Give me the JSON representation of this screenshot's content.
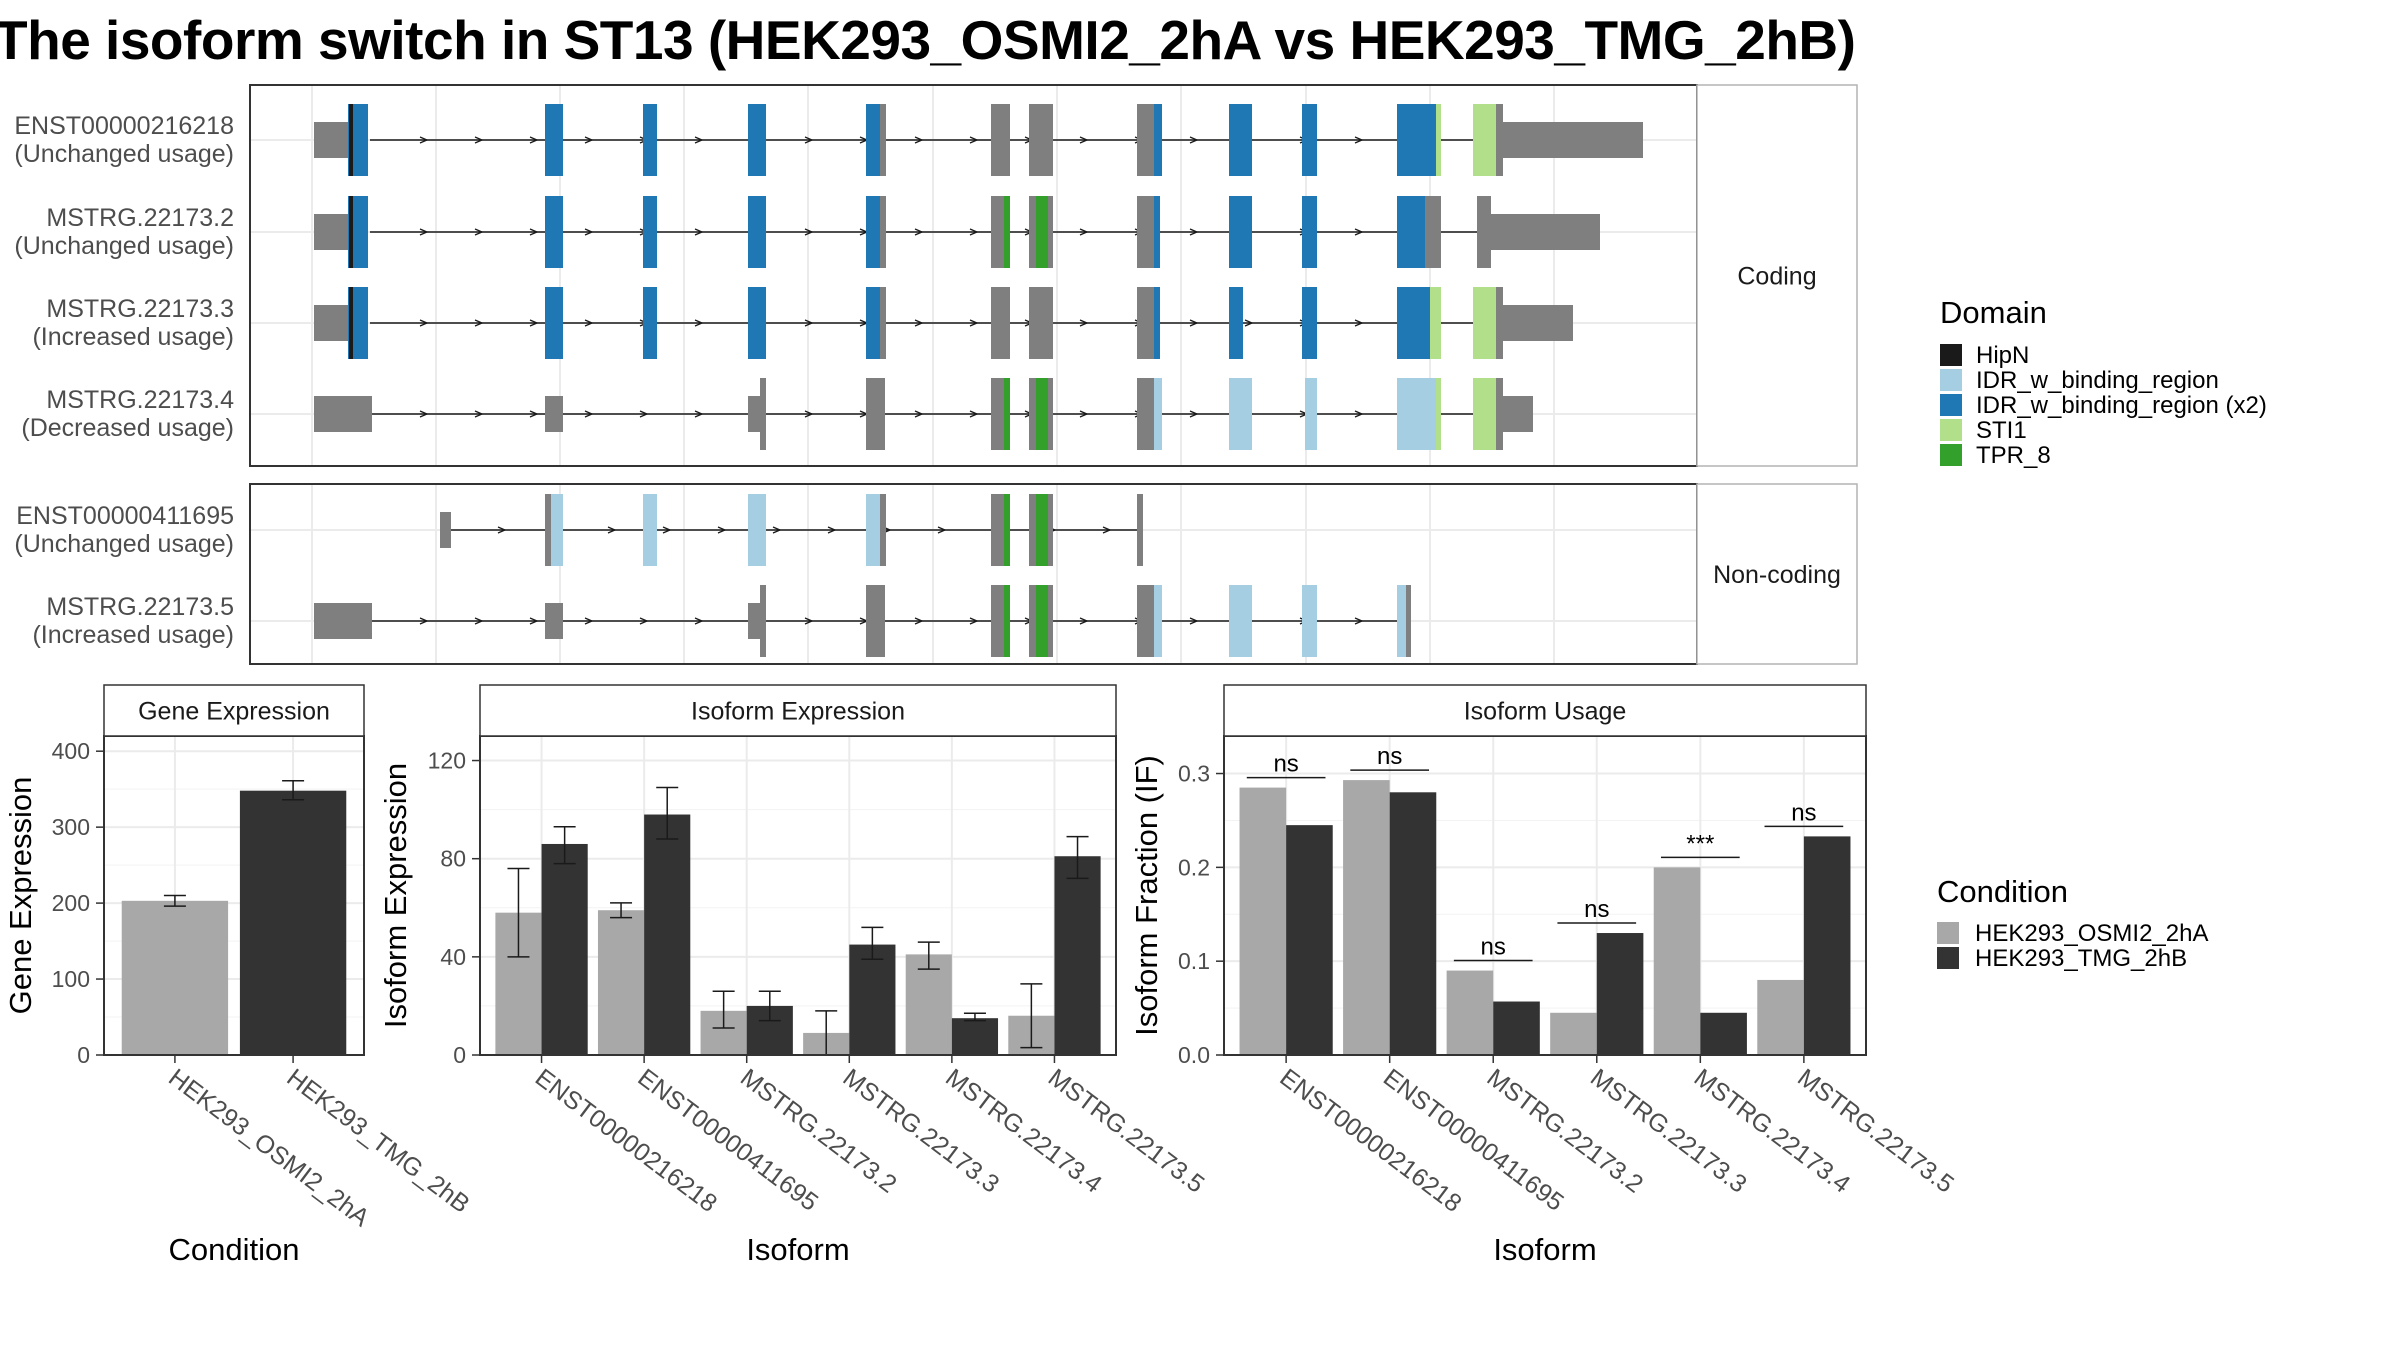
{
  "title": "The isoform switch in ST13 (HEK293_OSMI2_2hA vs HEK293_TMG_2hB)",
  "colors": {
    "HipN": "#1a1a1a",
    "IDR_w_binding_region": "#a6cee3",
    "IDR_w_binding_region (x2)": "#1f78b4",
    "STI1": "#b2df8a",
    "TPR_8": "#33a02c",
    "none": "#7f7f7f",
    "cond_a": "#a8a8a8",
    "cond_b": "#333333"
  },
  "structure": {
    "groups": [
      {
        "label": "Coding",
        "isoforms": [
          {
            "name": "ENST00000216218",
            "usage": "(Unchanged usage)"
          },
          {
            "name": "MSTRG.22173.2",
            "usage": "(Unchanged usage)"
          },
          {
            "name": "MSTRG.22173.3",
            "usage": "(Increased usage)"
          },
          {
            "name": "MSTRG.22173.4",
            "usage": "(Decreased usage)"
          }
        ]
      },
      {
        "label": "Non-coding",
        "isoforms": [
          {
            "name": "ENST00000411695",
            "usage": "(Unchanged usage)"
          },
          {
            "name": "MSTRG.22173.5",
            "usage": "(Increased usage)"
          }
        ]
      }
    ],
    "legend_title": "Domain",
    "legend": [
      "HipN",
      "IDR_w_binding_region",
      "IDR_w_binding_region (x2)",
      "STI1",
      "TPR_8"
    ]
  },
  "chart_data": [
    {
      "type": "bar",
      "title": "Gene Expression",
      "xlabel": "Condition",
      "ylabel": "Gene Expression",
      "categories": [
        "HEK293_OSMI2_2hA",
        "HEK293_TMG_2hB"
      ],
      "values": [
        203,
        348
      ],
      "errors": [
        [
          196,
          210
        ],
        [
          336,
          361
        ]
      ],
      "ylim": [
        0,
        420
      ],
      "yticks": [
        "0",
        "100",
        "200",
        "300",
        "400"
      ]
    },
    {
      "type": "bar",
      "title": "Isoform Expression",
      "xlabel": "Isoform",
      "ylabel": "Isoform Expression",
      "categories": [
        "ENST00000216218",
        "ENST00000411695",
        "MSTRG.22173.2",
        "MSTRG.22173.3",
        "MSTRG.22173.4",
        "MSTRG.22173.5"
      ],
      "series": [
        {
          "name": "HEK293_OSMI2_2hA",
          "values": [
            58,
            59,
            18,
            9,
            41,
            16
          ],
          "errors": [
            [
              40,
              76
            ],
            [
              56,
              62
            ],
            [
              11,
              26
            ],
            [
              0,
              18
            ],
            [
              35,
              46
            ],
            [
              3,
              29
            ]
          ]
        },
        {
          "name": "HEK293_TMG_2hB",
          "values": [
            86,
            98,
            20,
            45,
            15,
            81
          ],
          "errors": [
            [
              78,
              93
            ],
            [
              88,
              109
            ],
            [
              14,
              26
            ],
            [
              39,
              52
            ],
            [
              14,
              17
            ],
            [
              72,
              89
            ]
          ]
        }
      ],
      "ylim": [
        0,
        130
      ],
      "yticks": [
        "0",
        "40",
        "80",
        "120"
      ]
    },
    {
      "type": "bar",
      "title": "Isoform Usage",
      "xlabel": "Isoform",
      "ylabel": "Isoform Fraction (IF)",
      "categories": [
        "ENST00000216218",
        "ENST00000411695",
        "MSTRG.22173.2",
        "MSTRG.22173.3",
        "MSTRG.22173.4",
        "MSTRG.22173.5"
      ],
      "series": [
        {
          "name": "HEK293_OSMI2_2hA",
          "values": [
            0.285,
            0.293,
            0.09,
            0.045,
            0.2,
            0.08
          ]
        },
        {
          "name": "HEK293_TMG_2hB",
          "values": [
            0.245,
            0.28,
            0.057,
            0.13,
            0.045,
            0.233
          ]
        }
      ],
      "significance": [
        "ns",
        "ns",
        "ns",
        "ns",
        "***",
        "ns"
      ],
      "ylim": [
        0,
        0.34
      ],
      "yticks": [
        "0.0",
        "0.1",
        "0.2",
        "0.3"
      ]
    }
  ],
  "condition_legend": {
    "title": "Condition",
    "items": [
      "HEK293_OSMI2_2hA",
      "HEK293_TMG_2hB"
    ]
  }
}
